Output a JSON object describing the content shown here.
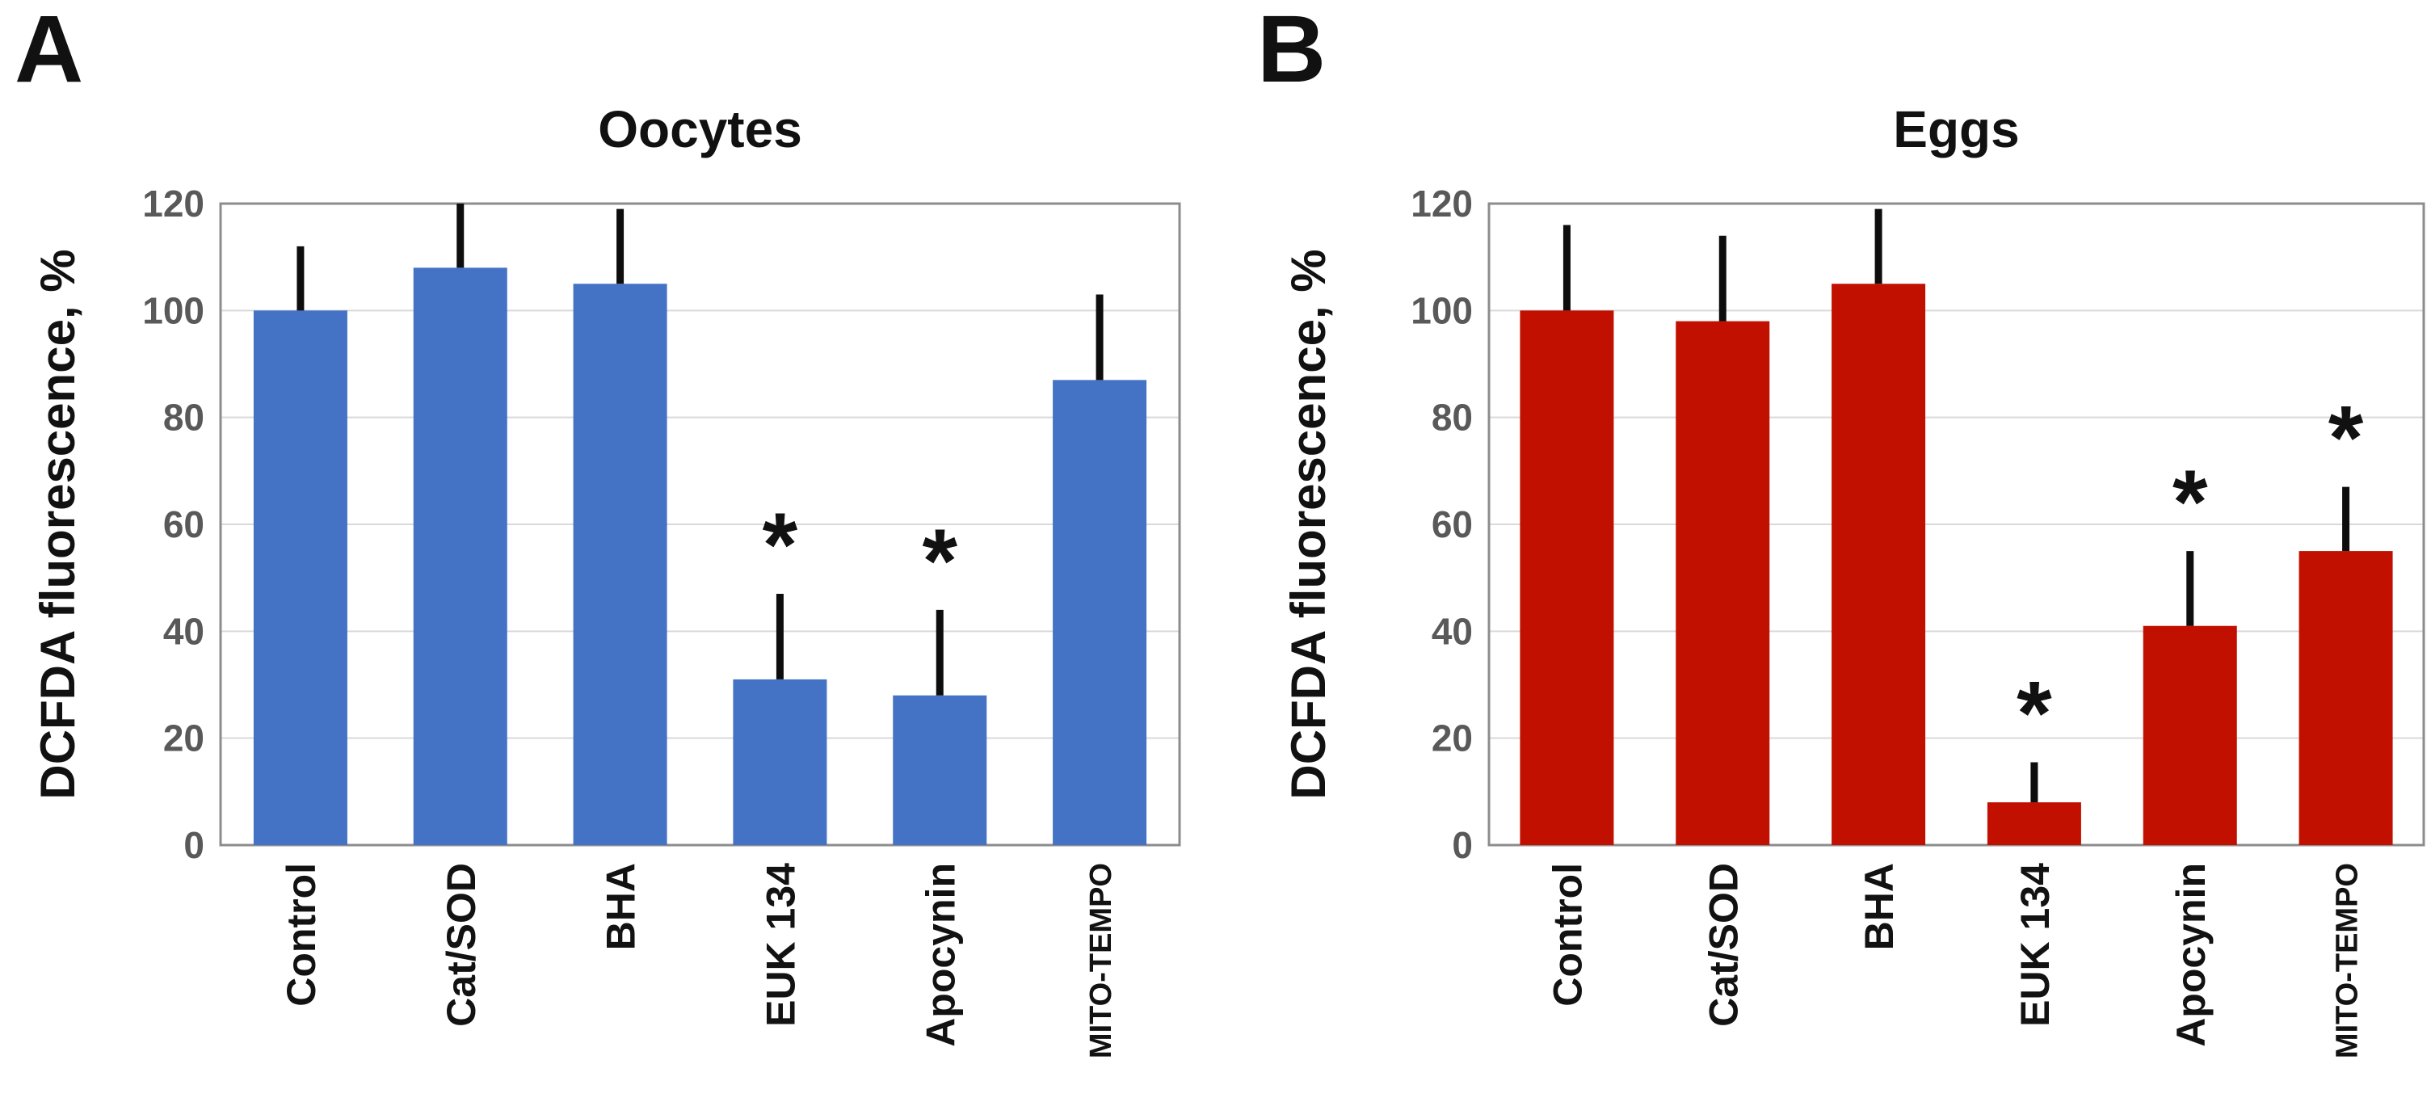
{
  "figure": {
    "background_color": "#ffffff",
    "panels": [
      {
        "panel_label": "A",
        "title": "Oocytes"
      },
      {
        "panel_label": "B",
        "title": "Eggs"
      }
    ]
  },
  "colors": {
    "oocytes_bar": "#4472C4",
    "eggs_bar": "#C21000",
    "error_bar": "#0d0d0d",
    "gridline": "#d9d9d9",
    "plot_border": "#8c8c8c",
    "tick_text": "#595959",
    "label_text": "#121212"
  },
  "chart_data": [
    {
      "type": "bar",
      "panel": "A",
      "title": "Oocytes",
      "xlabel": "",
      "ylabel": "DCFDA fluorescence, %",
      "ylim": [
        0,
        120
      ],
      "yticks": [
        0,
        20,
        40,
        60,
        80,
        100,
        120
      ],
      "grid": true,
      "legend_position": "none",
      "bar_color": "#4472C4",
      "categories": [
        "Control",
        "Cat/SOD",
        "BHA",
        "EUK 134",
        "Apocynin",
        "MITO-TEMPO"
      ],
      "values": [
        100,
        108,
        105,
        31,
        28,
        87
      ],
      "error_top": [
        112,
        120,
        119,
        47,
        44,
        103
      ],
      "significant": [
        false,
        false,
        false,
        true,
        true,
        false
      ],
      "significance_marker": "*"
    },
    {
      "type": "bar",
      "panel": "B",
      "title": "Eggs",
      "xlabel": "",
      "ylabel": "DCFDA fluorescence, %",
      "ylim": [
        0,
        120
      ],
      "yticks": [
        0,
        20,
        40,
        60,
        80,
        100,
        120
      ],
      "grid": true,
      "legend_position": "none",
      "bar_color": "#C21000",
      "categories": [
        "Control",
        "Cat/SOD",
        "BHA",
        "EUK 134",
        "Apocynin",
        "MITO-TEMPO"
      ],
      "values": [
        100,
        98,
        105,
        8,
        41,
        55
      ],
      "error_top": [
        116,
        114,
        119,
        15.5,
        55,
        67
      ],
      "significant": [
        false,
        false,
        false,
        true,
        true,
        true
      ],
      "significance_marker": "*"
    }
  ]
}
